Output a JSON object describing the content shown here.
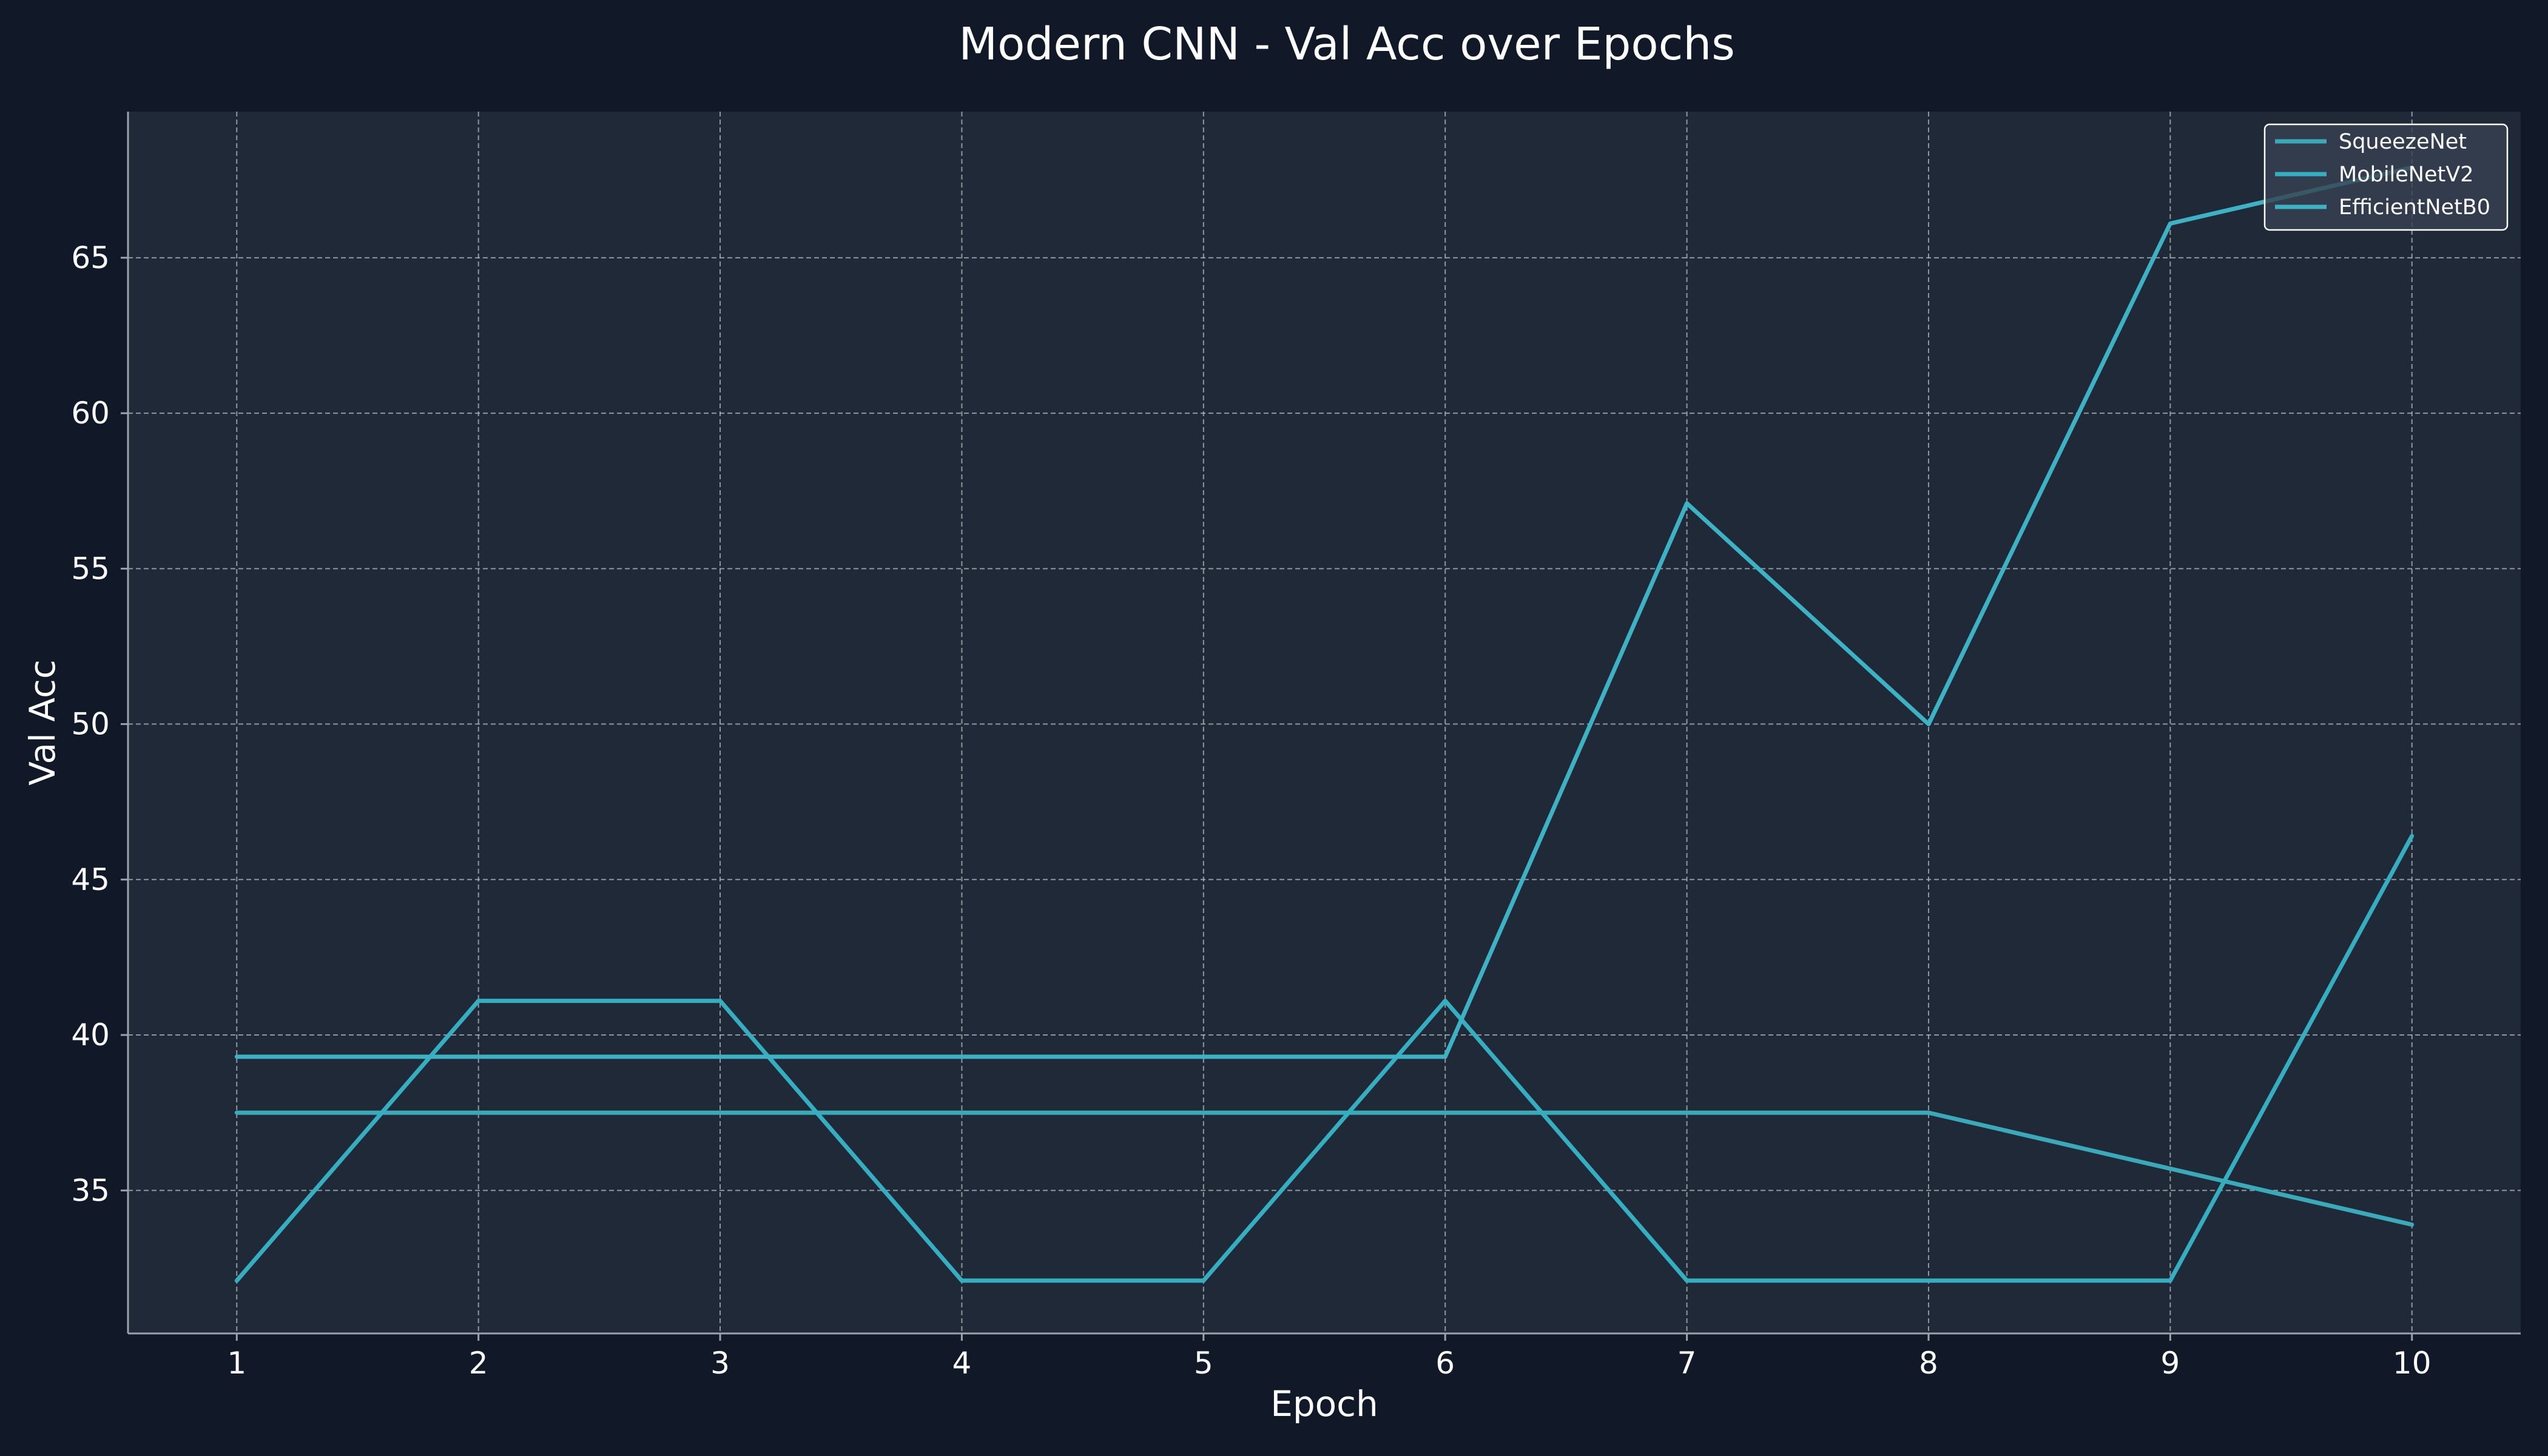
{
  "chart_data": {
    "type": "line",
    "title": "Modern CNN - Val Acc over Epochs",
    "xlabel": "Epoch",
    "ylabel": "Val Acc",
    "x": [
      1,
      2,
      3,
      4,
      5,
      6,
      7,
      8,
      9,
      10
    ],
    "xlim": [
      0.55,
      10.45
    ],
    "ylim": [
      30.4,
      69.7
    ],
    "yticks": [
      35,
      40,
      45,
      50,
      55,
      60,
      65
    ],
    "grid": true,
    "legend_position": "top-right",
    "series": [
      {
        "name": "SqueezeNet",
        "values": [
          37.5,
          37.5,
          37.5,
          37.5,
          37.5,
          37.5,
          37.5,
          37.5,
          35.7,
          33.9
        ]
      },
      {
        "name": "MobileNetV2",
        "values": [
          32.1,
          41.1,
          41.1,
          32.1,
          32.1,
          41.1,
          32.1,
          32.1,
          32.1,
          46.4
        ]
      },
      {
        "name": "EfficientNetB0",
        "values": [
          39.3,
          39.3,
          39.3,
          39.3,
          39.3,
          39.3,
          57.1,
          50.0,
          66.1,
          67.9
        ]
      }
    ]
  },
  "colors": {
    "background": "#111827",
    "plot_background": "#1f2937",
    "series": [
      "#3aaabb",
      "#34aec0",
      "#3cb2c4"
    ],
    "grid": "#b8bcc4",
    "axis": "#9ca3af"
  }
}
